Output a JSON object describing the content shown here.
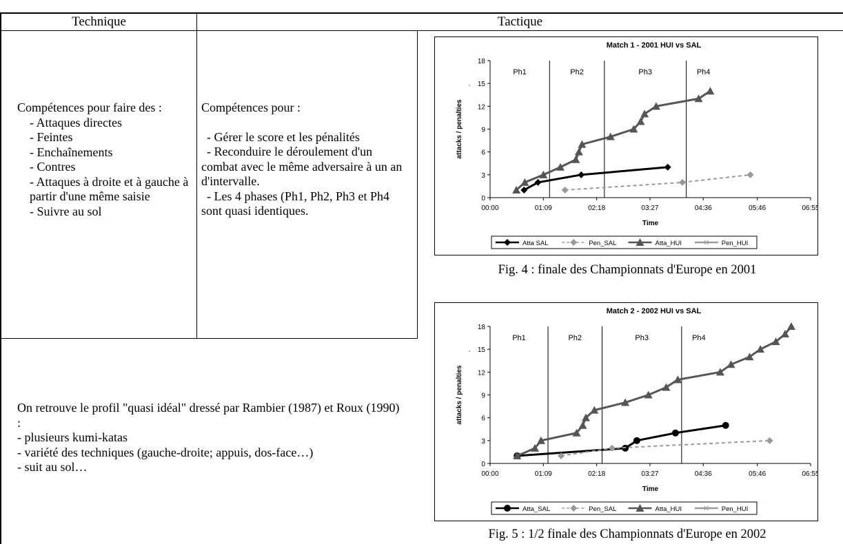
{
  "header": {
    "technique": "Technique",
    "tactique": "Tactique"
  },
  "technique_cell": {
    "intro": "Compétences pour faire des :",
    "items": [
      "- Attaques directes",
      "- Feintes",
      "- Enchaînements",
      "- Contres",
      "- Attaques à droite et à gauche à partir d'une même saisie",
      "- Suivre au sol"
    ]
  },
  "tactique_cell": {
    "intro": "Compétences pour :",
    "items": [
      "- Gérer le score et les pénalités",
      "- Reconduire le déroulement d'un combat avec le même adversaire à un an d'intervalle.",
      "- Les 4 phases (Ph1, Ph2, Ph3 et Ph4 sont quasi identiques."
    ]
  },
  "profile_cell": {
    "intro": "On retrouve le profil \"quasi idéal\" dressé par Rambier (1987) et Roux (1990) :",
    "items": [
      "- plusieurs kumi-katas",
      "- variété des techniques (gauche-droite; appuis, dos-face…)",
      "- suit au sol…"
    ]
  },
  "chart_data": [
    {
      "type": "line",
      "title": "Match 1 - 2001 HUI vs SAL",
      "xlabel": "Time",
      "ylabel": "attacks / penalties",
      "y_mark": ".",
      "xlim": [
        "00:00",
        "06:55"
      ],
      "ylim": [
        0,
        18
      ],
      "yticks": [
        "0",
        "3",
        "6",
        "9",
        "12",
        "15",
        "18"
      ],
      "xticks": [
        "00:00",
        "01:09",
        "02:18",
        "03:27",
        "04:36",
        "05:46",
        "06:55"
      ],
      "phases": [
        {
          "label": "Ph1",
          "start": "00:00",
          "end": "01:17"
        },
        {
          "label": "Ph2",
          "start": "01:17",
          "end": "02:28"
        },
        {
          "label": "Ph3",
          "start": "02:28",
          "end": "04:14"
        },
        {
          "label": "Ph4",
          "start": "04:14",
          "end": "06:55"
        }
      ],
      "legend": [
        "Atta SAL",
        "Pen_SAL",
        "Atta_HUI",
        "Pen_HUI"
      ],
      "series": [
        {
          "name": "Atta SAL",
          "color": "#000000",
          "dash": false,
          "marker": "diamond",
          "points": [
            [
              "00:44",
              1
            ],
            [
              "01:02",
              2
            ],
            [
              "01:58",
              3
            ],
            [
              "03:50",
              4
            ]
          ]
        },
        {
          "name": "Pen_SAL",
          "color": "#999999",
          "dash": true,
          "marker": "diamond",
          "points": [
            [
              "01:37",
              1
            ],
            [
              "04:09",
              2
            ],
            [
              "05:37",
              3
            ]
          ]
        },
        {
          "name": "Atta_HUI",
          "color": "#555555",
          "dash": false,
          "marker": "triangle",
          "points": [
            [
              "00:34",
              1
            ],
            [
              "00:45",
              2
            ],
            [
              "01:09",
              3
            ],
            [
              "01:31",
              4
            ],
            [
              "01:51",
              5
            ],
            [
              "01:55",
              6
            ],
            [
              "01:59",
              7
            ],
            [
              "02:36",
              8
            ],
            [
              "03:06",
              9
            ],
            [
              "03:15",
              10
            ],
            [
              "03:20",
              11
            ],
            [
              "03:35",
              12
            ],
            [
              "04:30",
              13
            ],
            [
              "04:45",
              14
            ]
          ]
        },
        {
          "name": "Pen_HUI",
          "color": "#999999",
          "dash": false,
          "marker": "x",
          "points": []
        }
      ]
    },
    {
      "type": "line",
      "title": "Match 2 - 2002 HUI vs SAL",
      "xlabel": "Time",
      "ylabel": "attacks / penalties",
      "y_mark": ".",
      "xlim": [
        "00:00",
        "06:55"
      ],
      "ylim": [
        0,
        18
      ],
      "yticks": [
        "0",
        "3",
        "6",
        "9",
        "12",
        "15",
        "18"
      ],
      "xticks": [
        "00:00",
        "01:09",
        "02:18",
        "03:27",
        "04:36",
        "05:46",
        "06:55"
      ],
      "phases": [
        {
          "label": "Ph1",
          "start": "00:00",
          "end": "01:15"
        },
        {
          "label": "Ph2",
          "start": "01:15",
          "end": "02:25"
        },
        {
          "label": "Ph3",
          "start": "02:25",
          "end": "04:08"
        },
        {
          "label": "Ph4",
          "start": "04:08",
          "end": "06:55"
        }
      ],
      "legend": [
        "Atta_SAL",
        "Pen_SAL",
        "Atta_HUI",
        "Pen_HUI"
      ],
      "series": [
        {
          "name": "Atta_SAL",
          "color": "#000000",
          "dash": false,
          "marker": "circle",
          "points": [
            [
              "00:35",
              1
            ],
            [
              "02:55",
              2
            ],
            [
              "03:10",
              3
            ],
            [
              "04:00",
              4
            ],
            [
              "05:05",
              5
            ]
          ]
        },
        {
          "name": "Pen_SAL",
          "color": "#999999",
          "dash": true,
          "marker": "diamond",
          "points": [
            [
              "01:32",
              1
            ],
            [
              "02:38",
              2
            ],
            [
              "06:02",
              3
            ]
          ]
        },
        {
          "name": "Atta_HUI",
          "color": "#555555",
          "dash": false,
          "marker": "triangle",
          "points": [
            [
              "00:35",
              1
            ],
            [
              "00:58",
              2
            ],
            [
              "01:06",
              3
            ],
            [
              "01:52",
              4
            ],
            [
              "02:00",
              5
            ],
            [
              "02:04",
              6
            ],
            [
              "02:15",
              7
            ],
            [
              "02:55",
              8
            ],
            [
              "03:25",
              9
            ],
            [
              "03:48",
              10
            ],
            [
              "04:03",
              11
            ],
            [
              "04:58",
              12
            ],
            [
              "05:12",
              13
            ],
            [
              "05:36",
              14
            ],
            [
              "05:50",
              15
            ],
            [
              "06:10",
              16
            ],
            [
              "06:22",
              17
            ],
            [
              "06:30",
              18
            ]
          ]
        },
        {
          "name": "Pen_HUI",
          "color": "#999999",
          "dash": false,
          "marker": "x",
          "points": []
        }
      ]
    }
  ],
  "captions": [
    "Fig. 4 : finale des Championnats d'Europe en 2001",
    "Fig. 5 : 1/2 finale des Championnats d'Europe en 2002"
  ]
}
